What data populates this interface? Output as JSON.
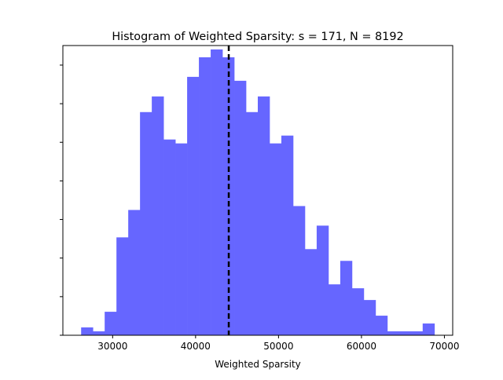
{
  "chart_data": {
    "type": "histogram",
    "title": "Histogram of Weighted Sparsity: s = 171, N = 8192",
    "xlabel": "Weighted Sparsity",
    "ylabel": "",
    "xlim": [
      24000,
      71000
    ],
    "ylim": [
      0,
      74
    ],
    "x_ticks": [
      30000,
      40000,
      50000,
      60000,
      70000
    ],
    "x_tick_labels": [
      "30000",
      "40000",
      "50000",
      "60000",
      "70000"
    ],
    "y_ticks_count": 8,
    "y_tick_labels_visible": false,
    "grid": false,
    "bar_color": "#6666ff",
    "bar_opacity": 0.6,
    "bin_start": 26200,
    "bin_width": 1420,
    "bins": [
      {
        "x0": 26200,
        "x1": 27620,
        "count": 2
      },
      {
        "x0": 27620,
        "x1": 29040,
        "count": 1
      },
      {
        "x0": 29040,
        "x1": 30460,
        "count": 6
      },
      {
        "x0": 30460,
        "x1": 31880,
        "count": 25
      },
      {
        "x0": 31880,
        "x1": 33300,
        "count": 32
      },
      {
        "x0": 33300,
        "x1": 34720,
        "count": 57
      },
      {
        "x0": 34720,
        "x1": 36140,
        "count": 61
      },
      {
        "x0": 36140,
        "x1": 37560,
        "count": 50
      },
      {
        "x0": 37560,
        "x1": 38980,
        "count": 49
      },
      {
        "x0": 38980,
        "x1": 40400,
        "count": 66
      },
      {
        "x0": 40400,
        "x1": 41820,
        "count": 71
      },
      {
        "x0": 41820,
        "x1": 43240,
        "count": 73
      },
      {
        "x0": 43240,
        "x1": 44660,
        "count": 71
      },
      {
        "x0": 44660,
        "x1": 46080,
        "count": 65
      },
      {
        "x0": 46080,
        "x1": 47500,
        "count": 57
      },
      {
        "x0": 47500,
        "x1": 48920,
        "count": 61
      },
      {
        "x0": 48920,
        "x1": 50340,
        "count": 49
      },
      {
        "x0": 50340,
        "x1": 51760,
        "count": 51
      },
      {
        "x0": 51760,
        "x1": 53180,
        "count": 33
      },
      {
        "x0": 53180,
        "x1": 54600,
        "count": 22
      },
      {
        "x0": 54600,
        "x1": 56020,
        "count": 28
      },
      {
        "x0": 56020,
        "x1": 57440,
        "count": 13
      },
      {
        "x0": 57440,
        "x1": 58860,
        "count": 19
      },
      {
        "x0": 58860,
        "x1": 60280,
        "count": 12
      },
      {
        "x0": 60280,
        "x1": 61700,
        "count": 9
      },
      {
        "x0": 61700,
        "x1": 63120,
        "count": 5
      },
      {
        "x0": 63120,
        "x1": 64540,
        "count": 1
      },
      {
        "x0": 64540,
        "x1": 65960,
        "count": 1
      },
      {
        "x0": 65960,
        "x1": 67380,
        "count": 1
      },
      {
        "x0": 67380,
        "x1": 68800,
        "count": 3
      }
    ],
    "annotations": [
      {
        "type": "vertical-dashed-line",
        "x": 44000,
        "color": "#000000"
      }
    ]
  }
}
